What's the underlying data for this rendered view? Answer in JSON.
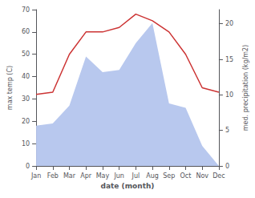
{
  "chart_data": {
    "type": "line",
    "xlabel": "date (month)",
    "ylabel": "max temp (C)",
    "y2label": "med. precipitation (kg/m2)",
    "categories": [
      "Jan",
      "Feb",
      "Mar",
      "Apr",
      "May",
      "Jun",
      "Jul",
      "Aug",
      "Sep",
      "Oct",
      "Nov",
      "Dec"
    ],
    "series": [
      {
        "type": "area",
        "color": "#b8c8ee",
        "values": [
          18,
          19,
          27,
          49,
          42,
          43,
          55,
          64,
          28,
          26,
          9,
          0
        ]
      },
      {
        "type": "line",
        "color": "#cc3333",
        "values": [
          32,
          33,
          50,
          60,
          60,
          62,
          68,
          65,
          60,
          50,
          35,
          33
        ]
      }
    ],
    "ylim": [
      0,
      70
    ],
    "yticks": [
      0,
      10,
      20,
      30,
      40,
      50,
      60,
      70
    ],
    "y2lim": [
      0,
      22
    ],
    "y2ticks": [
      0,
      5,
      10,
      15,
      20
    ],
    "grid": false
  }
}
